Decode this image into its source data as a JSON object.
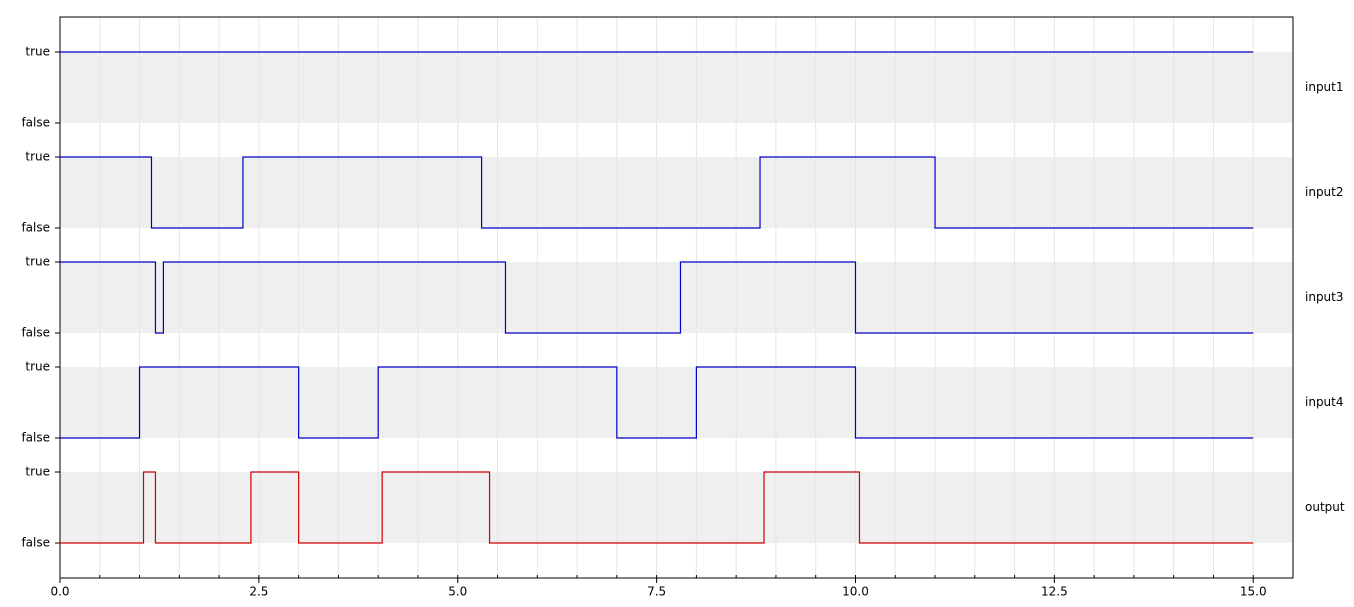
{
  "chart_data": {
    "type": "step",
    "xlim": [
      0,
      15.5
    ],
    "xticks": [
      {
        "value": 0,
        "label": "0.0"
      },
      {
        "value": 2.5,
        "label": "2.5"
      },
      {
        "value": 5,
        "label": "5.0"
      },
      {
        "value": 7.5,
        "label": "7.5"
      },
      {
        "value": 10,
        "label": "10.0"
      },
      {
        "value": 12.5,
        "label": "12.5"
      },
      {
        "value": 15,
        "label": "15.0"
      }
    ],
    "minor_xtick_step": 0.5,
    "yticks": [
      {
        "value": 1,
        "label": "true"
      },
      {
        "value": 0,
        "label": "false"
      }
    ],
    "grid": true,
    "series": [
      {
        "name": "input1",
        "color": "#0000c8",
        "x": [
          0,
          15
        ],
        "values": [
          1,
          1
        ]
      },
      {
        "name": "input2",
        "color": "#0000c8",
        "x": [
          0,
          1.15,
          2.3,
          5.3,
          8.8,
          11,
          15
        ],
        "values": [
          1,
          0,
          1,
          0,
          1,
          0,
          0
        ]
      },
      {
        "name": "input3",
        "color": "#0000c8",
        "x": [
          0,
          1.2,
          1.3,
          5.6,
          7.8,
          10,
          15
        ],
        "values": [
          1,
          0,
          1,
          0,
          1,
          0,
          0
        ]
      },
      {
        "name": "input4",
        "color": "#0000c8",
        "x": [
          0,
          1,
          3,
          4,
          7,
          8,
          10,
          15
        ],
        "values": [
          0,
          1,
          0,
          1,
          0,
          1,
          0,
          0
        ]
      },
      {
        "name": "output",
        "color": "#d00000",
        "x": [
          0,
          1.05,
          1.2,
          2.4,
          3,
          4.05,
          5.4,
          8.85,
          10.05,
          15
        ],
        "values": [
          0,
          1,
          0,
          1,
          0,
          1,
          0,
          1,
          0,
          0
        ]
      }
    ]
  }
}
